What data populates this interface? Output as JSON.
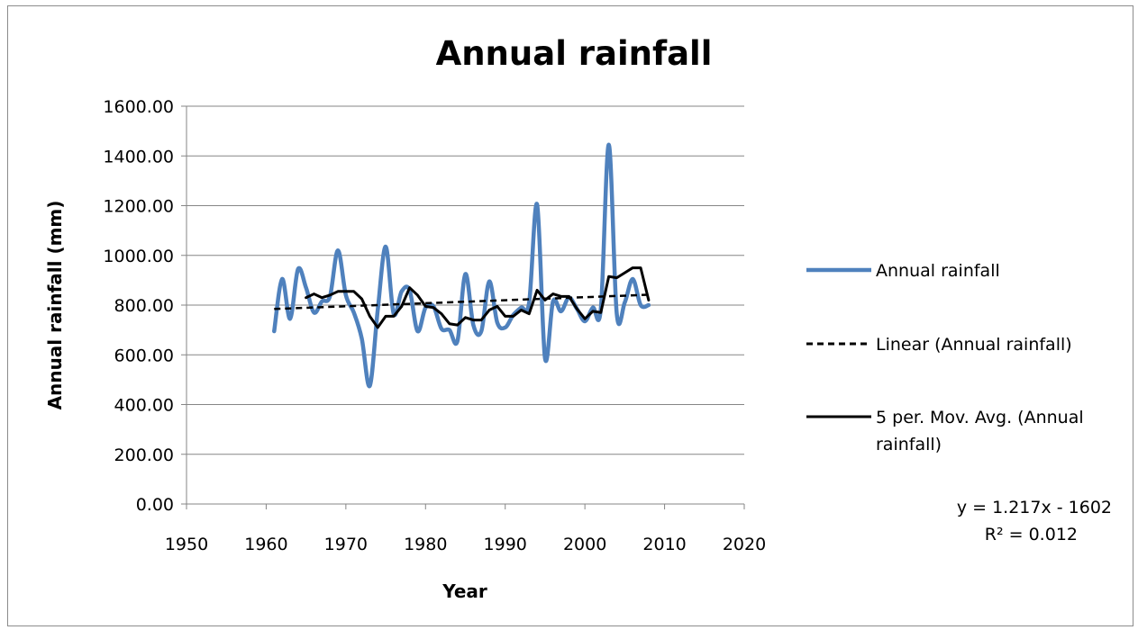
{
  "chart_data": {
    "type": "line",
    "title": "Annual rainfall",
    "xlabel": "Year",
    "ylabel": "Annual rainfall (mm)",
    "xlim": [
      1950,
      2020
    ],
    "ylim": [
      0,
      1600
    ],
    "x_ticks": [
      "1950",
      "1960",
      "1970",
      "1980",
      "1990",
      "2000",
      "2010",
      "2020"
    ],
    "y_ticks": [
      "0.00",
      "200.00",
      "400.00",
      "600.00",
      "800.00",
      "1000.00",
      "1200.00",
      "1400.00",
      "1600.00"
    ],
    "grid": "horizontal",
    "legend_position": "right",
    "series": [
      {
        "name": "Annual rainfall",
        "color": "#4f81bd",
        "style": "smooth",
        "x": [
          1961,
          1962,
          1963,
          1964,
          1965,
          1966,
          1967,
          1968,
          1969,
          1970,
          1971,
          1972,
          1973,
          1974,
          1975,
          1976,
          1977,
          1978,
          1979,
          1980,
          1981,
          1982,
          1983,
          1984,
          1985,
          1986,
          1987,
          1988,
          1989,
          1990,
          1991,
          1992,
          1993,
          1994,
          1995,
          1996,
          1997,
          1998,
          1999,
          2000,
          2001,
          2002,
          2003,
          2004,
          2005,
          2006,
          2007,
          2008
        ],
        "values": [
          695,
          905,
          745,
          945,
          870,
          770,
          815,
          835,
          1020,
          840,
          770,
          665,
          475,
          780,
          1035,
          765,
          855,
          860,
          695,
          790,
          795,
          705,
          700,
          655,
          925,
          720,
          695,
          895,
          730,
          710,
          760,
          790,
          810,
          1205,
          585,
          815,
          775,
          830,
          785,
          735,
          790,
          785,
          1445,
          765,
          810,
          905,
          800,
          800
        ]
      },
      {
        "name": "Linear (Annual rainfall)",
        "color": "#000000",
        "style": "dashed",
        "x": [
          1961,
          2008
        ],
        "values": [
          784.4,
          841.6
        ]
      },
      {
        "name": "5 per. Mov. Avg. (Annual rainfall)",
        "color": "#000000",
        "style": "solid",
        "x": [
          1965,
          1966,
          1967,
          1968,
          1969,
          1970,
          1971,
          1972,
          1973,
          1974,
          1975,
          1976,
          1977,
          1978,
          1979,
          1980,
          1981,
          1982,
          1983,
          1984,
          1985,
          1986,
          1987,
          1988,
          1989,
          1990,
          1991,
          1992,
          1993,
          1994,
          1995,
          1996,
          1997,
          1998,
          1999,
          2000,
          2001,
          2002,
          2003,
          2004,
          2005,
          2006,
          2007,
          2008
        ],
        "values": [
          830,
          845,
          830,
          840,
          855,
          855,
          855,
          825,
          755,
          710,
          755,
          755,
          795,
          870,
          840,
          795,
          790,
          765,
          725,
          720,
          750,
          740,
          740,
          780,
          795,
          755,
          755,
          780,
          765,
          860,
          820,
          845,
          835,
          835,
          785,
          745,
          775,
          770,
          915,
          910,
          930,
          950,
          950,
          820
        ]
      }
    ],
    "legend": [
      {
        "label": "Annual rainfall",
        "color": "#4f81bd",
        "style": "solid"
      },
      {
        "label": "Linear (Annual rainfall)",
        "color": "#000000",
        "style": "dashed"
      },
      {
        "label_lines": [
          "5 per. Mov. Avg. (Annual",
          "rainfall)"
        ],
        "color": "#000000",
        "style": "solid"
      }
    ],
    "trendline_equation": "y = 1.217x - 1602",
    "trendline_r2": "R² = 0.012"
  }
}
